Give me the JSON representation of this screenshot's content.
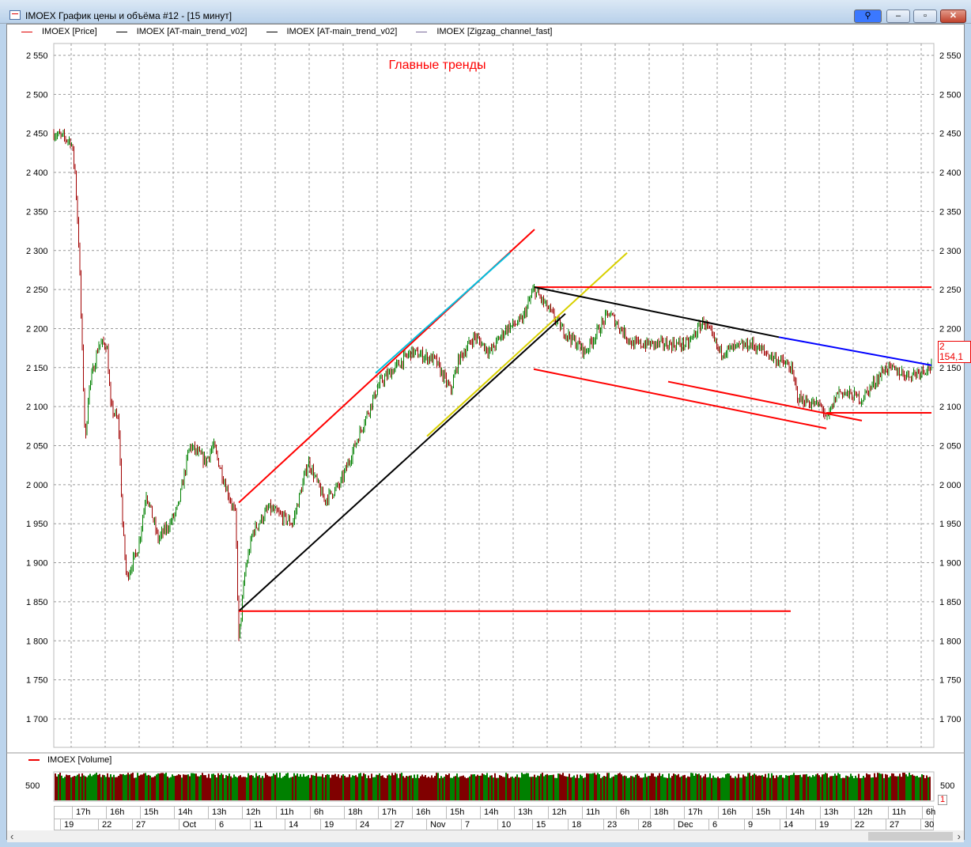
{
  "window": {
    "title": "IMOEX График цены и объёма #12 - [15 минут]",
    "buttons": {
      "link": "⚲",
      "minimize": "–",
      "maximize": "▫",
      "close": "✕"
    }
  },
  "legend": [
    {
      "label": "IMOEX [Price]",
      "color": "#e00000"
    },
    {
      "label": "IMOEX [AT-main_trend_v02]",
      "color": "#000000"
    },
    {
      "label": "IMOEX [AT-main_trend_v02]",
      "color": "#000000"
    },
    {
      "label": "IMOEX [Zigzag_channel_fast]",
      "color": "#7a6a9a"
    }
  ],
  "volume_legend": {
    "label": "IMOEX [Volume]",
    "color": "#e00000"
  },
  "chart_data": {
    "type": "candlestick",
    "title": "Главные тренды",
    "ylim": [
      1680,
      2570
    ],
    "yticks": [
      2550,
      2500,
      2450,
      2400,
      2350,
      2300,
      2250,
      2200,
      2150,
      2100,
      2050,
      2000,
      1950,
      1900,
      1850,
      1800,
      1750,
      1700
    ],
    "ytick_labels": [
      "2 550",
      "2 500",
      "2 450",
      "2 400",
      "2 350",
      "2 300",
      "2 250",
      "2 200",
      "2 150",
      "2 100",
      "2 050",
      "2 000",
      "1 950",
      "1 900",
      "1 850",
      "1 800",
      "1 750",
      "1 700"
    ],
    "grid": true,
    "last_price": "2 154,1",
    "price_path": [
      [
        0,
        2450
      ],
      [
        22,
        2440
      ],
      [
        27,
        2400
      ],
      [
        32,
        2300
      ],
      [
        35,
        2200
      ],
      [
        40,
        2050
      ],
      [
        44,
        2120
      ],
      [
        57,
        2180
      ],
      [
        67,
        2180
      ],
      [
        72,
        2100
      ],
      [
        82,
        2080
      ],
      [
        87,
        1950
      ],
      [
        92,
        1880
      ],
      [
        107,
        1920
      ],
      [
        117,
        1990
      ],
      [
        132,
        1930
      ],
      [
        147,
        1950
      ],
      [
        157,
        1970
      ],
      [
        172,
        2050
      ],
      [
        192,
        2030
      ],
      [
        202,
        2050
      ],
      [
        217,
        2000
      ],
      [
        230,
        1960
      ],
      [
        234,
        1800
      ],
      [
        242,
        1890
      ],
      [
        252,
        1940
      ],
      [
        272,
        1970
      ],
      [
        302,
        1950
      ],
      [
        322,
        2030
      ],
      [
        342,
        1980
      ],
      [
        362,
        2000
      ],
      [
        377,
        2040
      ],
      [
        392,
        2080
      ],
      [
        412,
        2130
      ],
      [
        432,
        2150
      ],
      [
        452,
        2170
      ],
      [
        482,
        2160
      ],
      [
        502,
        2120
      ],
      [
        512,
        2160
      ],
      [
        532,
        2190
      ],
      [
        552,
        2170
      ],
      [
        572,
        2200
      ],
      [
        592,
        2210
      ],
      [
        607,
        2250
      ],
      [
        622,
        2230
      ],
      [
        642,
        2200
      ],
      [
        672,
        2170
      ],
      [
        702,
        2220
      ],
      [
        732,
        2180
      ],
      [
        762,
        2180
      ],
      [
        802,
        2180
      ],
      [
        822,
        2210
      ],
      [
        842,
        2170
      ],
      [
        882,
        2180
      ],
      [
        932,
        2150
      ],
      [
        942,
        2110
      ],
      [
        972,
        2100
      ],
      [
        977,
        2080
      ],
      [
        992,
        2120
      ],
      [
        1022,
        2110
      ],
      [
        1052,
        2150
      ],
      [
        1082,
        2140
      ],
      [
        1110,
        2152
      ]
    ],
    "trend_lines": [
      {
        "color": "#ff0000",
        "from": [
          234,
          1977
        ],
        "to": [
          608,
          2327
        ]
      },
      {
        "color": "#00c0e0",
        "from": [
          407,
          2143
        ],
        "to": [
          577,
          2297
        ]
      },
      {
        "color": "#000000",
        "from": [
          234,
          1838
        ],
        "to": [
          647,
          2219
        ]
      },
      {
        "color": "#d8d000",
        "from": [
          472,
          2062
        ],
        "to": [
          725,
          2297
        ]
      },
      {
        "color": "#ff0000",
        "from": [
          608,
          2253
        ],
        "to": [
          1110,
          2253
        ]
      },
      {
        "color": "#ff0000",
        "from": [
          234,
          1838
        ],
        "to": [
          932,
          1838
        ]
      },
      {
        "color": "#000000",
        "from": [
          608,
          2253
        ],
        "to": [
          917,
          2189
        ]
      },
      {
        "color": "#0000ff",
        "from": [
          917,
          2189
        ],
        "to": [
          1110,
          2153
        ]
      },
      {
        "color": "#ff0000",
        "from": [
          607,
          2148
        ],
        "to": [
          977,
          2072
        ]
      },
      {
        "color": "#ff0000",
        "from": [
          777,
          2132
        ],
        "to": [
          1022,
          2082
        ]
      },
      {
        "color": "#ff0000",
        "from": [
          977,
          2092
        ],
        "to": [
          1110,
          2092
        ]
      }
    ],
    "volume": {
      "tick_label": "500",
      "pane_number": "1",
      "up_color": "#008000",
      "down_color": "#800000"
    },
    "x_axis": {
      "hours": [
        "17h",
        "16h",
        "15h",
        "14h",
        "13h",
        "12h",
        "11h",
        "6h",
        "18h",
        "17h",
        "16h",
        "15h",
        "14h",
        "13h",
        "12h",
        "11h",
        "6h",
        "18h",
        "17h",
        "16h",
        "15h",
        "14h",
        "13h",
        "12h",
        "11h",
        "6h"
      ],
      "dates": [
        "19",
        "22",
        "27",
        "Oct",
        "6",
        "11",
        "14",
        "19",
        "24",
        "27",
        "Nov",
        "7",
        "10",
        "15",
        "18",
        "23",
        "28",
        "Dec",
        "6",
        "9",
        "14",
        "19",
        "22",
        "27",
        "30"
      ]
    }
  },
  "scrollbar": {
    "left": "‹",
    "right": "›"
  }
}
